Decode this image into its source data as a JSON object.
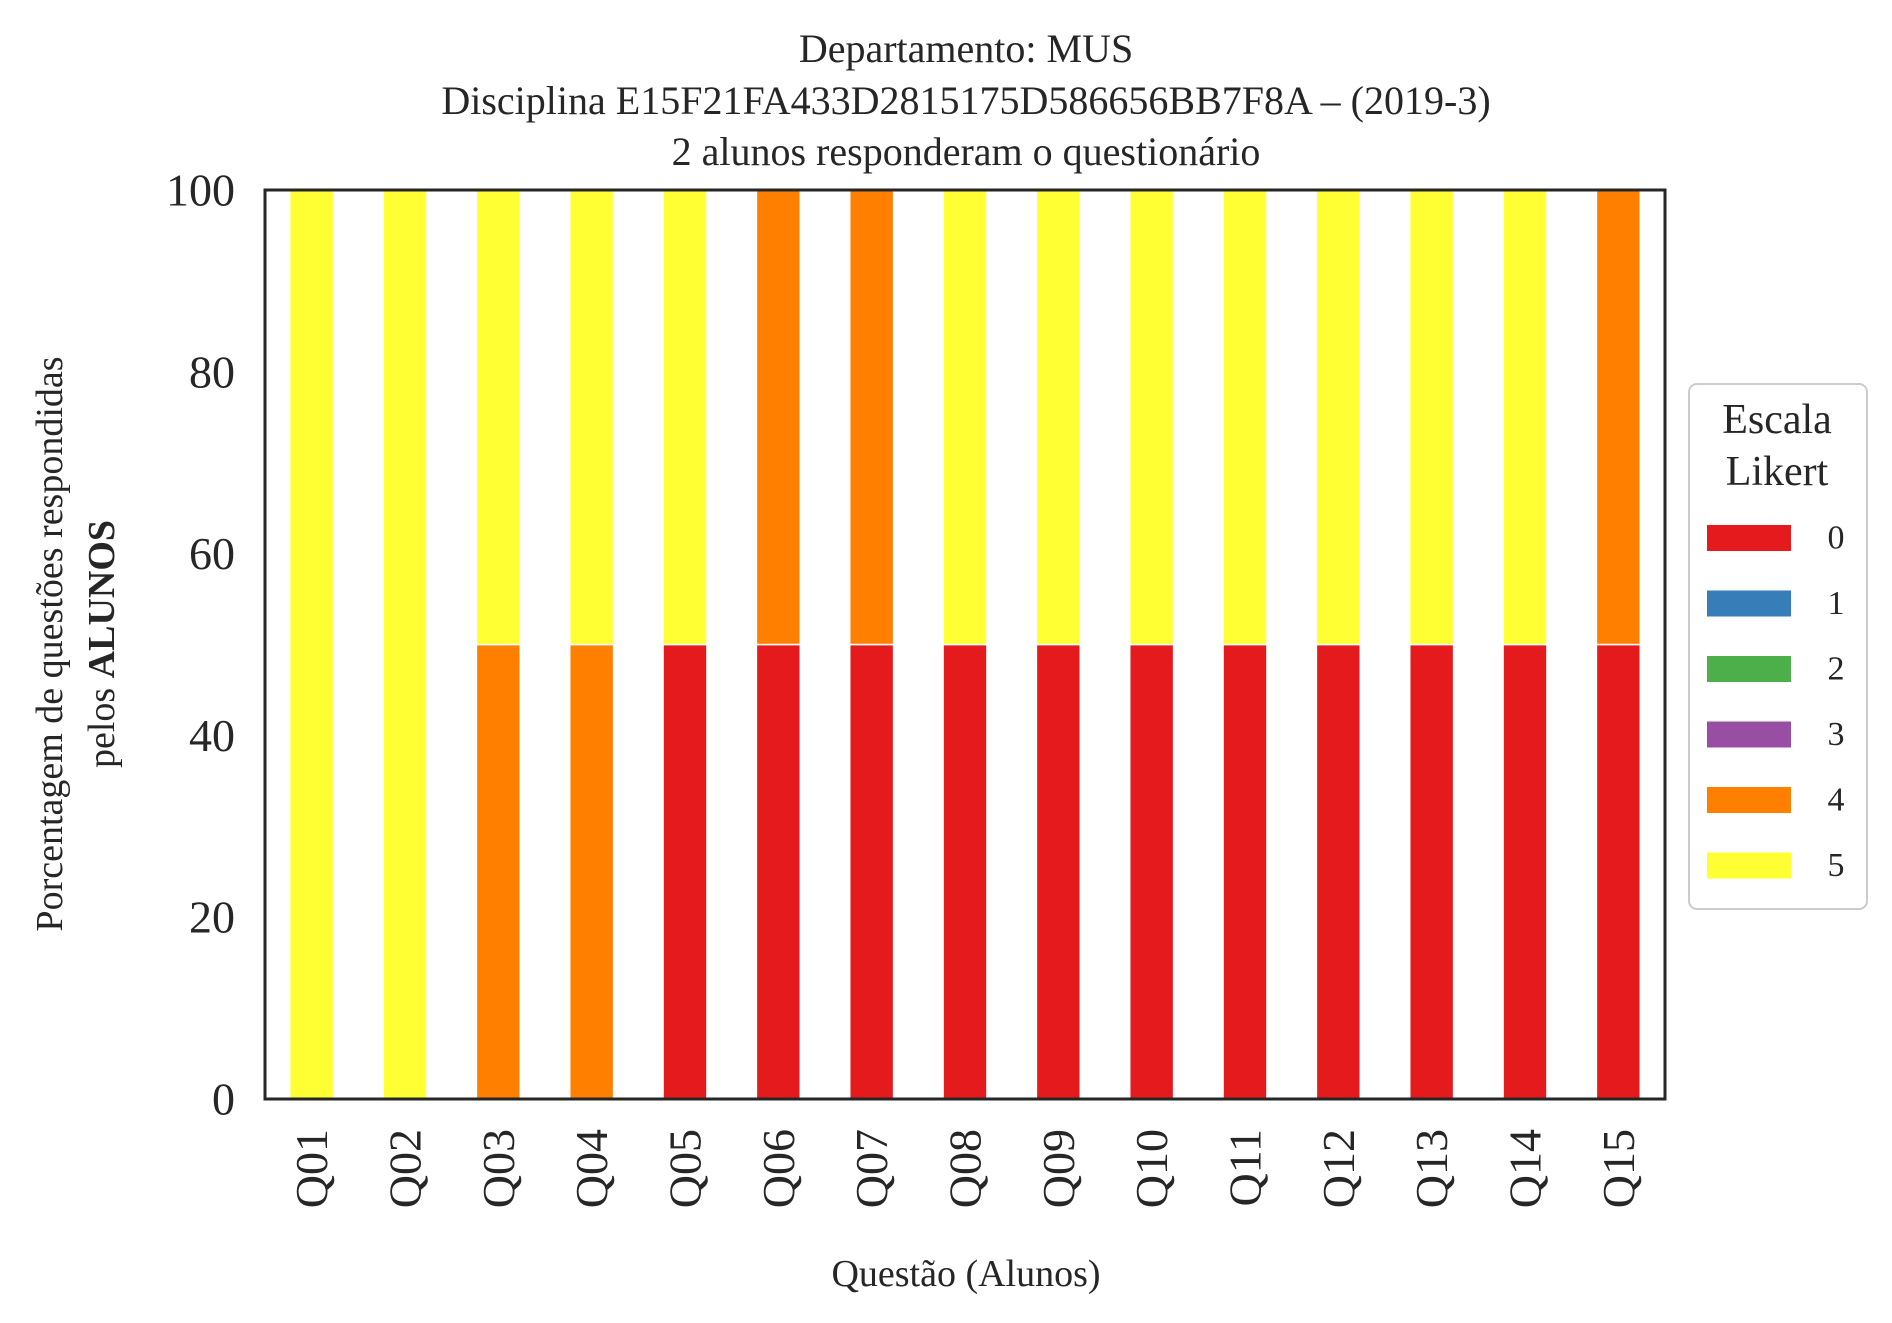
{
  "title_lines": [
    "Departamento: MUS",
    "Disciplina E15F21FA433D2815175D586656BB7F8A – (2019-3)",
    "2 alunos responderam o questionário"
  ],
  "axes": {
    "ylabel_line1": "Porcentagem de questões respondidas",
    "ylabel_line2_prefix": "pelos ",
    "ylabel_line2_bold": "ALUNOS",
    "xlabel": "Questão (Alunos)"
  },
  "legend": {
    "title_line1": "Escala",
    "title_line2": "Likert",
    "placement": "center-right, outside plot"
  },
  "chart_data": {
    "type": "bar",
    "stacked": true,
    "categories": [
      "Q01",
      "Q02",
      "Q03",
      "Q04",
      "Q05",
      "Q06",
      "Q07",
      "Q08",
      "Q09",
      "Q10",
      "Q11",
      "Q12",
      "Q13",
      "Q14",
      "Q15"
    ],
    "series": [
      {
        "name": "0",
        "color": "#e41a1c",
        "values": [
          0,
          0,
          0,
          0,
          50,
          50,
          50,
          50,
          50,
          50,
          50,
          50,
          50,
          50,
          50
        ]
      },
      {
        "name": "1",
        "color": "#377eb8",
        "values": [
          0,
          0,
          0,
          0,
          0,
          0,
          0,
          0,
          0,
          0,
          0,
          0,
          0,
          0,
          0
        ]
      },
      {
        "name": "2",
        "color": "#4daf4a",
        "values": [
          0,
          0,
          0,
          0,
          0,
          0,
          0,
          0,
          0,
          0,
          0,
          0,
          0,
          0,
          0
        ]
      },
      {
        "name": "3",
        "color": "#984ea3",
        "values": [
          0,
          0,
          0,
          0,
          0,
          0,
          0,
          0,
          0,
          0,
          0,
          0,
          0,
          0,
          0
        ]
      },
      {
        "name": "4",
        "color": "#ff7f00",
        "values": [
          0,
          0,
          50,
          50,
          0,
          50,
          50,
          0,
          0,
          0,
          0,
          0,
          0,
          0,
          50
        ]
      },
      {
        "name": "5",
        "color": "#ffff33",
        "values": [
          100,
          100,
          50,
          50,
          50,
          0,
          0,
          50,
          50,
          50,
          50,
          50,
          50,
          50,
          0
        ]
      }
    ],
    "yticks": [
      0,
      20,
      40,
      60,
      80,
      100
    ],
    "ylim": [
      0,
      100
    ],
    "grid": false
  }
}
